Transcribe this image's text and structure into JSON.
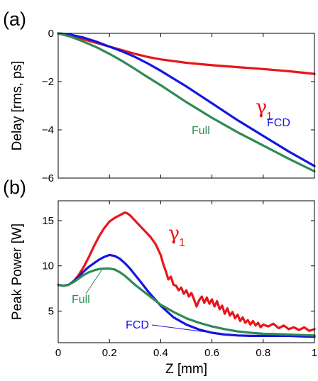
{
  "colors": {
    "gamma": "#e8151b",
    "fcd": "#1515e0",
    "full": "#2e8a55"
  },
  "chart_data": [
    {
      "panel_label": "(a)",
      "type": "line",
      "ylabel": "Delay [rms, ps]",
      "xlim": [
        0,
        1
      ],
      "ylim": [
        -6,
        0
      ],
      "yticks": [
        0,
        -2,
        -4,
        -6
      ],
      "ytick_labels": [
        "0",
        "−2",
        "−4",
        "−6"
      ],
      "x_ticklabels_shown": false,
      "series": [
        {
          "name": "γ",
          "subscript": "1",
          "color": "#e8151b",
          "x": [
            0,
            0.05,
            0.1,
            0.15,
            0.2,
            0.25,
            0.3,
            0.35,
            0.4,
            0.5,
            0.6,
            0.7,
            0.8,
            0.9,
            1.0
          ],
          "y": [
            0,
            -0.12,
            -0.25,
            -0.4,
            -0.55,
            -0.7,
            -0.85,
            -0.98,
            -1.08,
            -1.22,
            -1.32,
            -1.4,
            -1.48,
            -1.57,
            -1.68
          ]
        },
        {
          "name": "FCD",
          "color": "#1515e0",
          "x": [
            0,
            0.05,
            0.1,
            0.15,
            0.2,
            0.25,
            0.3,
            0.35,
            0.4,
            0.5,
            0.6,
            0.7,
            0.8,
            0.9,
            1.0
          ],
          "y": [
            0,
            -0.06,
            -0.18,
            -0.35,
            -0.55,
            -0.75,
            -0.98,
            -1.25,
            -1.55,
            -2.2,
            -2.9,
            -3.6,
            -4.25,
            -4.9,
            -5.5
          ]
        },
        {
          "name": "Full",
          "color": "#2e8a55",
          "x": [
            0,
            0.05,
            0.1,
            0.15,
            0.2,
            0.25,
            0.3,
            0.35,
            0.4,
            0.5,
            0.6,
            0.7,
            0.8,
            0.9,
            1.0
          ],
          "y": [
            0,
            -0.14,
            -0.35,
            -0.58,
            -0.85,
            -1.15,
            -1.48,
            -1.82,
            -2.15,
            -2.85,
            -3.5,
            -4.1,
            -4.65,
            -5.2,
            -5.72
          ]
        }
      ]
    },
    {
      "panel_label": "(b)",
      "type": "line",
      "xlabel": "Z [mm]",
      "ylabel": "Peak Power [W]",
      "xlim": [
        0,
        1
      ],
      "ylim": [
        1.5,
        17.2
      ],
      "xticks": [
        0,
        0.2,
        0.4,
        0.6,
        0.8,
        1
      ],
      "xtick_labels": [
        "0",
        "0.2",
        "0.4",
        "0.6",
        "0.8",
        "1"
      ],
      "yticks": [
        5,
        10,
        15
      ],
      "ytick_labels": [
        "5",
        "10",
        "15"
      ],
      "series": [
        {
          "name": "γ",
          "subscript": "1",
          "color": "#e8151b",
          "x": [
            0,
            0.02,
            0.04,
            0.06,
            0.08,
            0.1,
            0.12,
            0.14,
            0.16,
            0.18,
            0.2,
            0.22,
            0.24,
            0.26,
            0.27,
            0.28,
            0.3,
            0.32,
            0.34,
            0.36,
            0.38,
            0.4,
            0.41,
            0.42,
            0.43,
            0.44,
            0.45,
            0.46,
            0.47,
            0.48,
            0.49,
            0.5,
            0.51,
            0.52,
            0.53,
            0.54,
            0.55,
            0.56,
            0.57,
            0.58,
            0.59,
            0.6,
            0.61,
            0.62,
            0.63,
            0.64,
            0.65,
            0.66,
            0.67,
            0.68,
            0.69,
            0.7,
            0.71,
            0.72,
            0.73,
            0.74,
            0.75,
            0.76,
            0.77,
            0.78,
            0.79,
            0.8,
            0.82,
            0.84,
            0.86,
            0.88,
            0.9,
            0.92,
            0.94,
            0.96,
            0.98,
            1.0
          ],
          "y": [
            7.9,
            7.8,
            7.9,
            8.3,
            9.0,
            9.9,
            11.0,
            12.2,
            13.3,
            14.2,
            14.9,
            15.3,
            15.6,
            15.9,
            15.8,
            15.6,
            15.0,
            14.4,
            13.8,
            13.2,
            12.4,
            11.2,
            10.2,
            9.4,
            8.5,
            8.8,
            7.9,
            7.8,
            7.3,
            7.6,
            6.9,
            7.3,
            6.6,
            7.0,
            6.3,
            5.5,
            6.2,
            6.6,
            5.9,
            6.5,
            5.8,
            6.3,
            5.5,
            6.1,
            5.2,
            5.6,
            4.7,
            5.3,
            4.5,
            4.9,
            4.2,
            4.6,
            3.9,
            4.3,
            3.7,
            4.0,
            3.5,
            3.9,
            3.4,
            3.7,
            3.2,
            3.5,
            3.3,
            3.6,
            3.1,
            3.4,
            3.0,
            3.2,
            2.9,
            3.2,
            2.8,
            3.0
          ]
        },
        {
          "name": "FCD",
          "color": "#1515e0",
          "x": [
            0,
            0.02,
            0.04,
            0.06,
            0.08,
            0.1,
            0.12,
            0.14,
            0.16,
            0.18,
            0.2,
            0.22,
            0.24,
            0.26,
            0.28,
            0.3,
            0.32,
            0.35,
            0.4,
            0.45,
            0.5,
            0.55,
            0.6,
            0.65,
            0.7,
            0.75,
            0.8,
            0.85,
            0.9,
            0.95,
            1.0
          ],
          "y": [
            7.9,
            7.8,
            7.9,
            8.3,
            8.8,
            9.4,
            9.9,
            10.3,
            10.7,
            11.0,
            11.2,
            11.1,
            10.8,
            10.3,
            9.7,
            9.0,
            8.3,
            7.2,
            5.6,
            4.3,
            3.5,
            2.95,
            2.6,
            2.4,
            2.3,
            2.25,
            2.25,
            2.25,
            2.25,
            2.2,
            2.15
          ]
        },
        {
          "name": "Full",
          "color": "#2e8a55",
          "x": [
            0,
            0.02,
            0.04,
            0.06,
            0.08,
            0.1,
            0.12,
            0.14,
            0.16,
            0.18,
            0.2,
            0.22,
            0.24,
            0.26,
            0.28,
            0.3,
            0.35,
            0.4,
            0.45,
            0.5,
            0.55,
            0.6,
            0.65,
            0.7,
            0.75,
            0.8,
            0.85,
            0.9,
            0.95,
            1.0
          ],
          "y": [
            7.9,
            7.8,
            7.9,
            8.2,
            8.6,
            9.0,
            9.3,
            9.5,
            9.65,
            9.7,
            9.7,
            9.6,
            9.3,
            8.9,
            8.4,
            7.9,
            6.8,
            5.7,
            4.9,
            4.2,
            3.7,
            3.3,
            3.0,
            2.75,
            2.6,
            2.5,
            2.45,
            2.4,
            2.35,
            2.3
          ]
        }
      ]
    }
  ]
}
